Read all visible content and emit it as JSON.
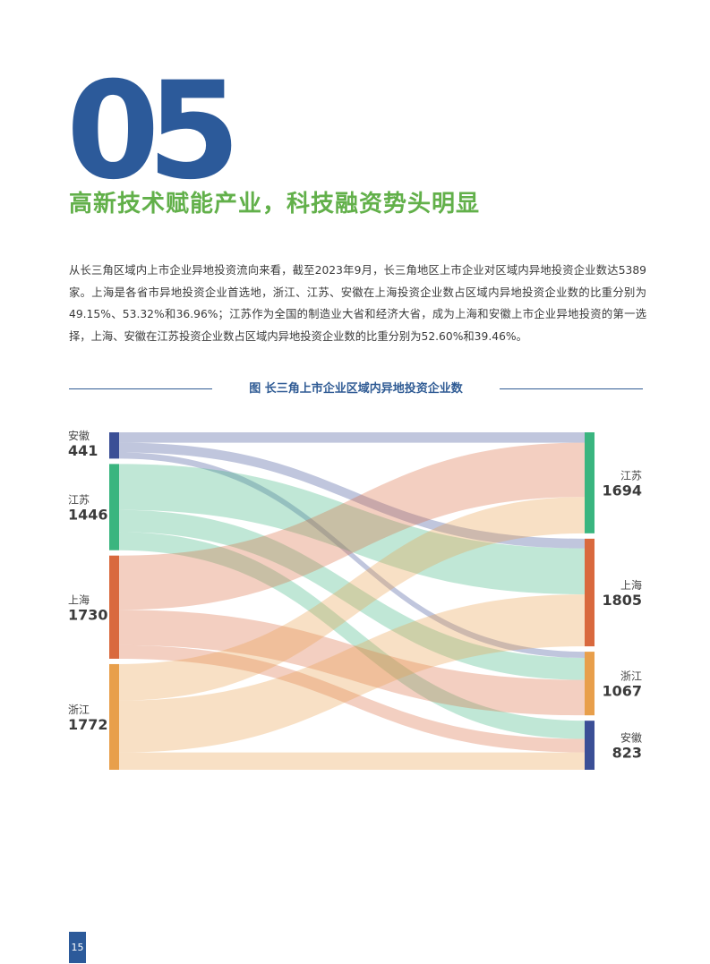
{
  "section": {
    "number": "05",
    "title": "高新技术赋能产业，科技融资势头明显",
    "intro": "从长三角区域内上市企业异地投资流向来看，截至2023年9月，长三角地区上市企业对区域内异地投资企业数达5389家。上海是各省市异地投资企业首选地，浙江、江苏、安徽在上海投资企业数占区域内异地投资企业数的比重分别为49.15%、53.32%和36.96%；江苏作为全国的制造业大省和经济大省，成为上海和安徽上市企业异地投资的第一选择，上海、安徽在江苏投资企业数占区域内异地投资企业数的比重分别为52.60%和39.46%。"
  },
  "figure": {
    "title": "图 长三角上市企业区域内异地投资企业数"
  },
  "page_number": "15",
  "chart_data": {
    "type": "sankey",
    "sources": [
      {
        "name": "安徽",
        "value": 441,
        "color": "#3b4f96"
      },
      {
        "name": "江苏",
        "value": 1446,
        "color": "#3ab57f"
      },
      {
        "name": "上海",
        "value": 1730,
        "color": "#d9693e"
      },
      {
        "name": "浙江",
        "value": 1772,
        "color": "#e89f4b"
      }
    ],
    "targets": [
      {
        "name": "江苏",
        "value": 1694,
        "color": "#3ab57f"
      },
      {
        "name": "上海",
        "value": 1805,
        "color": "#d9693e"
      },
      {
        "name": "浙江",
        "value": 1067,
        "color": "#e89f4b"
      },
      {
        "name": "安徽",
        "value": 823,
        "color": "#3b4f96"
      }
    ],
    "flows": [
      {
        "source": "安徽",
        "target": "江苏",
        "value": 174
      },
      {
        "source": "安徽",
        "target": "上海",
        "value": 163
      },
      {
        "source": "安徽",
        "target": "浙江",
        "value": 104
      },
      {
        "source": "江苏",
        "target": "上海",
        "value": 771
      },
      {
        "source": "江苏",
        "target": "浙江",
        "value": 369
      },
      {
        "source": "江苏",
        "target": "安徽",
        "value": 306
      },
      {
        "source": "上海",
        "target": "江苏",
        "value": 910
      },
      {
        "source": "上海",
        "target": "浙江",
        "value": 594
      },
      {
        "source": "上海",
        "target": "安徽",
        "value": 226
      },
      {
        "source": "浙江",
        "target": "江苏",
        "value": 610
      },
      {
        "source": "浙江",
        "target": "上海",
        "value": 871
      },
      {
        "source": "浙江",
        "target": "安徽",
        "value": 291
      }
    ]
  }
}
